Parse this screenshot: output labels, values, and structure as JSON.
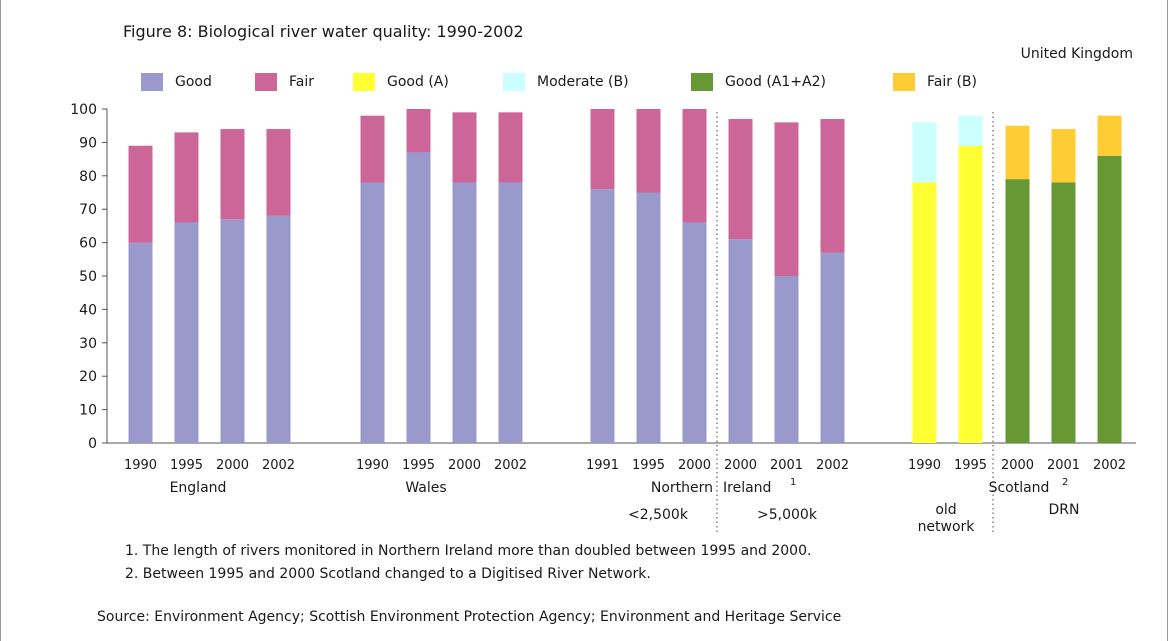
{
  "chart_data": {
    "type": "bar",
    "stacked": true,
    "title": "Figure 8: Biological river water quality: 1990-2002",
    "region": "United Kingdom",
    "xlabel": "",
    "ylabel": "",
    "ylim": [
      0,
      100
    ],
    "yticks": [
      0,
      10,
      20,
      30,
      40,
      50,
      60,
      70,
      80,
      90,
      100
    ],
    "grid": false,
    "legend_placement": "top",
    "legend": [
      {
        "key": "good",
        "label": "Good",
        "color": "#9999cc"
      },
      {
        "key": "fair",
        "label": "Fair",
        "color": "#cc6699"
      },
      {
        "key": "goodA",
        "label": "Good (A)",
        "color": "#ffff33"
      },
      {
        "key": "moderateB",
        "label": "Moderate (B)",
        "color": "#ccffff"
      },
      {
        "key": "goodA1A2",
        "label": "Good (A1+A2)",
        "color": "#669933"
      },
      {
        "key": "fairB",
        "label": "Fair (B)",
        "color": "#ffcc33"
      }
    ],
    "groups": [
      {
        "name": "England",
        "bars": [
          {
            "x": "1990",
            "segments": [
              {
                "series": "good",
                "value": 60
              },
              {
                "series": "fair",
                "value": 29
              }
            ]
          },
          {
            "x": "1995",
            "segments": [
              {
                "series": "good",
                "value": 66
              },
              {
                "series": "fair",
                "value": 27
              }
            ]
          },
          {
            "x": "2000",
            "segments": [
              {
                "series": "good",
                "value": 67
              },
              {
                "series": "fair",
                "value": 27
              }
            ]
          },
          {
            "x": "2002",
            "segments": [
              {
                "series": "good",
                "value": 68
              },
              {
                "series": "fair",
                "value": 26
              }
            ]
          }
        ]
      },
      {
        "name": "Wales",
        "bars": [
          {
            "x": "1990",
            "segments": [
              {
                "series": "good",
                "value": 78
              },
              {
                "series": "fair",
                "value": 20
              }
            ]
          },
          {
            "x": "1995",
            "segments": [
              {
                "series": "good",
                "value": 87
              },
              {
                "series": "fair",
                "value": 13
              }
            ]
          },
          {
            "x": "2000",
            "segments": [
              {
                "series": "good",
                "value": 78
              },
              {
                "series": "fair",
                "value": 21
              }
            ]
          },
          {
            "x": "2002",
            "segments": [
              {
                "series": "good",
                "value": 78
              },
              {
                "series": "fair",
                "value": 21
              }
            ]
          }
        ]
      },
      {
        "name": "Northern Ireland",
        "sub": "<2,500k",
        "bars": [
          {
            "x": "1991",
            "segments": [
              {
                "series": "good",
                "value": 76
              },
              {
                "series": "fair",
                "value": 24
              }
            ]
          },
          {
            "x": "1995",
            "segments": [
              {
                "series": "good",
                "value": 75
              },
              {
                "series": "fair",
                "value": 25
              }
            ]
          },
          {
            "x": "2000",
            "segments": [
              {
                "series": "good",
                "value": 66
              },
              {
                "series": "fair",
                "value": 34
              }
            ]
          }
        ]
      },
      {
        "name": "Northern Ireland",
        "sub": ">5,000k",
        "bars": [
          {
            "x": "2000",
            "segments": [
              {
                "series": "good",
                "value": 61
              },
              {
                "series": "fair",
                "value": 36
              }
            ]
          },
          {
            "x": "2001",
            "segments": [
              {
                "series": "good",
                "value": 50
              },
              {
                "series": "fair",
                "value": 46
              }
            ]
          },
          {
            "x": "2002",
            "segments": [
              {
                "series": "good",
                "value": 57
              },
              {
                "series": "fair",
                "value": 40
              }
            ]
          }
        ]
      },
      {
        "name": "Scotland",
        "sub": "old network",
        "bars": [
          {
            "x": "1990",
            "segments": [
              {
                "series": "goodA",
                "value": 78
              },
              {
                "series": "moderateB",
                "value": 18
              }
            ]
          },
          {
            "x": "1995",
            "segments": [
              {
                "series": "goodA",
                "value": 89
              },
              {
                "series": "moderateB",
                "value": 9
              }
            ]
          }
        ]
      },
      {
        "name": "Scotland",
        "sub": "DRN",
        "bars": [
          {
            "x": "2000",
            "segments": [
              {
                "series": "goodA1A2",
                "value": 79
              },
              {
                "series": "fairB",
                "value": 16
              }
            ]
          },
          {
            "x": "2001",
            "segments": [
              {
                "series": "goodA1A2",
                "value": 78
              },
              {
                "series": "fairB",
                "value": 16
              }
            ]
          },
          {
            "x": "2002",
            "segments": [
              {
                "series": "goodA1A2",
                "value": 86
              },
              {
                "series": "fairB",
                "value": 12
              }
            ]
          }
        ]
      }
    ],
    "group_labels": [
      {
        "key": "england",
        "text": "England"
      },
      {
        "key": "wales",
        "text": "Wales"
      },
      {
        "key": "ni_a",
        "text": "Northern"
      },
      {
        "key": "ni_b",
        "text": "Ireland"
      },
      {
        "key": "ni_sup",
        "text": "1"
      },
      {
        "key": "ni_sub_a",
        "text": "<2,500k"
      },
      {
        "key": "ni_sub_b",
        "text": ">5,000k"
      },
      {
        "key": "sc",
        "text": "Scotland"
      },
      {
        "key": "sc_sup",
        "text": "2"
      },
      {
        "key": "sc_sub_a1",
        "text": "old"
      },
      {
        "key": "sc_sub_a2",
        "text": "network"
      },
      {
        "key": "sc_sub_b",
        "text": "DRN"
      }
    ]
  },
  "notes": [
    "1. The length of rivers monitored in Northern Ireland more than doubled between 1995 and 2000.",
    "2. Between 1995 and 2000 Scotland changed to a Digitised River Network."
  ],
  "source": "Source: Environment Agency; Scottish Environment Protection Agency;  Environment and Heritage Service"
}
